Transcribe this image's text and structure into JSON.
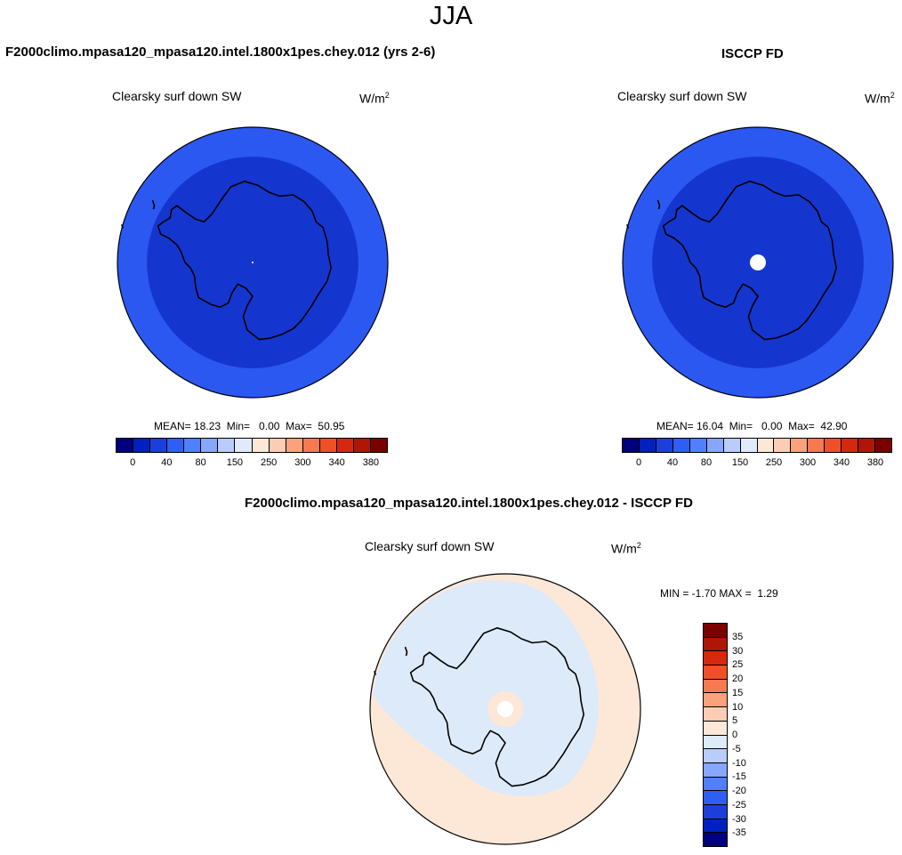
{
  "season": "JJA",
  "left": {
    "case_title": "F2000climo.mpasa120_mpasa120.intel.1800x1pes.chey.012 (yrs 2-6)",
    "variable": "Clearsky surf down SW",
    "units_base": "W/m",
    "units_exp": "2",
    "stats": "MEAN= 18.23  Min=   0.00  Max=  50.95"
  },
  "right": {
    "case_title": "ISCCP FD",
    "variable": "Clearsky surf down SW",
    "units_base": "W/m",
    "units_exp": "2",
    "stats": "MEAN= 16.04  Min=   0.00  Max=  42.90"
  },
  "diff": {
    "case_title": "F2000climo.mpasa120_mpasa120.intel.1800x1pes.chey.012 - ISCCP FD",
    "variable": "Clearsky surf down SW",
    "units_base": "W/m",
    "units_exp": "2",
    "stats": "MIN = -1.70 MAX =  1.29"
  },
  "colorbar_top": {
    "colors": [
      "#00007f",
      "#0020c0",
      "#1c3fdc",
      "#2f5ef6",
      "#4f80ff",
      "#86a6ff",
      "#b8cdfb",
      "#dfeafa",
      "#fde8d8",
      "#fcccb4",
      "#f9a27c",
      "#f6794f",
      "#ef5026",
      "#d6280e",
      "#b01605",
      "#7a0000"
    ],
    "tick_labels": [
      "0",
      "40",
      "80",
      "150",
      "250",
      "300",
      "340",
      "380"
    ]
  },
  "colorbar_diff": {
    "colors": [
      "#7a0000",
      "#b01605",
      "#d6280e",
      "#ef5026",
      "#f6794f",
      "#f9a27c",
      "#fcccb4",
      "#fde8d8",
      "#dfeafa",
      "#b8cdfb",
      "#86a6ff",
      "#4f80ff",
      "#2f5ef6",
      "#1c3fdc",
      "#0020c0",
      "#00007f"
    ],
    "tick_labels": [
      "35",
      "30",
      "25",
      "20",
      "15",
      "10",
      "5",
      "0",
      "-5",
      "-10",
      "-15",
      "-20",
      "-25",
      "-30",
      "-35"
    ]
  },
  "map_colors": {
    "outer_ring": "#2c58f2",
    "inner_disk": "#1436ce",
    "diff_warm": "#fde8d8",
    "diff_cool": "#dceafa",
    "coast": "#000000"
  }
}
